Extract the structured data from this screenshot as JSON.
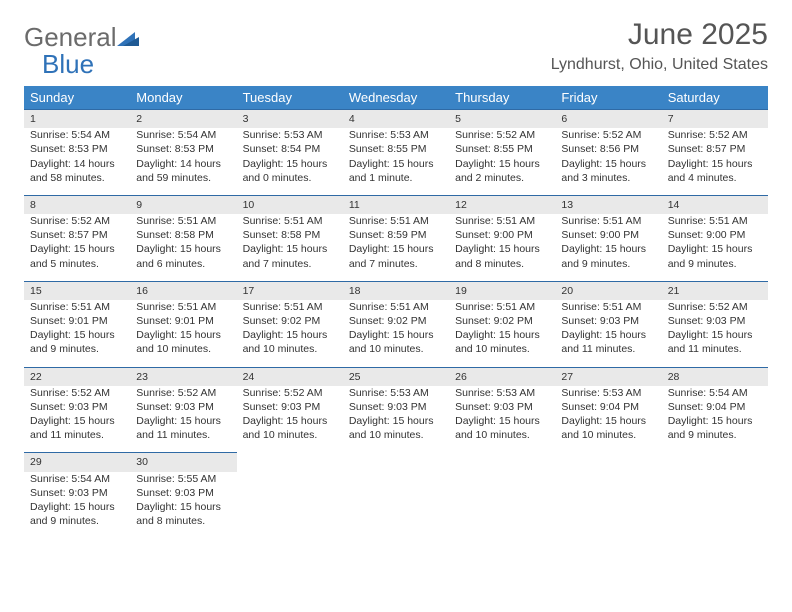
{
  "logo": {
    "text_gray": "General",
    "text_blue": "Blue",
    "gray_color": "#6b6b6b",
    "blue_color": "#2f72b8"
  },
  "title": "June 2025",
  "location": "Lyndhurst, Ohio, United States",
  "header_bg": "#3a84c6",
  "header_fg": "#ffffff",
  "daynum_bg": "#e9e9e9",
  "rule_color": "#2f6aa5",
  "weekdays": [
    "Sunday",
    "Monday",
    "Tuesday",
    "Wednesday",
    "Thursday",
    "Friday",
    "Saturday"
  ],
  "weeks": [
    [
      {
        "n": "1",
        "sr": "Sunrise: 5:54 AM",
        "ss": "Sunset: 8:53 PM",
        "dl": "Daylight: 14 hours and 58 minutes."
      },
      {
        "n": "2",
        "sr": "Sunrise: 5:54 AM",
        "ss": "Sunset: 8:53 PM",
        "dl": "Daylight: 14 hours and 59 minutes."
      },
      {
        "n": "3",
        "sr": "Sunrise: 5:53 AM",
        "ss": "Sunset: 8:54 PM",
        "dl": "Daylight: 15 hours and 0 minutes."
      },
      {
        "n": "4",
        "sr": "Sunrise: 5:53 AM",
        "ss": "Sunset: 8:55 PM",
        "dl": "Daylight: 15 hours and 1 minute."
      },
      {
        "n": "5",
        "sr": "Sunrise: 5:52 AM",
        "ss": "Sunset: 8:55 PM",
        "dl": "Daylight: 15 hours and 2 minutes."
      },
      {
        "n": "6",
        "sr": "Sunrise: 5:52 AM",
        "ss": "Sunset: 8:56 PM",
        "dl": "Daylight: 15 hours and 3 minutes."
      },
      {
        "n": "7",
        "sr": "Sunrise: 5:52 AM",
        "ss": "Sunset: 8:57 PM",
        "dl": "Daylight: 15 hours and 4 minutes."
      }
    ],
    [
      {
        "n": "8",
        "sr": "Sunrise: 5:52 AM",
        "ss": "Sunset: 8:57 PM",
        "dl": "Daylight: 15 hours and 5 minutes."
      },
      {
        "n": "9",
        "sr": "Sunrise: 5:51 AM",
        "ss": "Sunset: 8:58 PM",
        "dl": "Daylight: 15 hours and 6 minutes."
      },
      {
        "n": "10",
        "sr": "Sunrise: 5:51 AM",
        "ss": "Sunset: 8:58 PM",
        "dl": "Daylight: 15 hours and 7 minutes."
      },
      {
        "n": "11",
        "sr": "Sunrise: 5:51 AM",
        "ss": "Sunset: 8:59 PM",
        "dl": "Daylight: 15 hours and 7 minutes."
      },
      {
        "n": "12",
        "sr": "Sunrise: 5:51 AM",
        "ss": "Sunset: 9:00 PM",
        "dl": "Daylight: 15 hours and 8 minutes."
      },
      {
        "n": "13",
        "sr": "Sunrise: 5:51 AM",
        "ss": "Sunset: 9:00 PM",
        "dl": "Daylight: 15 hours and 9 minutes."
      },
      {
        "n": "14",
        "sr": "Sunrise: 5:51 AM",
        "ss": "Sunset: 9:00 PM",
        "dl": "Daylight: 15 hours and 9 minutes."
      }
    ],
    [
      {
        "n": "15",
        "sr": "Sunrise: 5:51 AM",
        "ss": "Sunset: 9:01 PM",
        "dl": "Daylight: 15 hours and 9 minutes."
      },
      {
        "n": "16",
        "sr": "Sunrise: 5:51 AM",
        "ss": "Sunset: 9:01 PM",
        "dl": "Daylight: 15 hours and 10 minutes."
      },
      {
        "n": "17",
        "sr": "Sunrise: 5:51 AM",
        "ss": "Sunset: 9:02 PM",
        "dl": "Daylight: 15 hours and 10 minutes."
      },
      {
        "n": "18",
        "sr": "Sunrise: 5:51 AM",
        "ss": "Sunset: 9:02 PM",
        "dl": "Daylight: 15 hours and 10 minutes."
      },
      {
        "n": "19",
        "sr": "Sunrise: 5:51 AM",
        "ss": "Sunset: 9:02 PM",
        "dl": "Daylight: 15 hours and 10 minutes."
      },
      {
        "n": "20",
        "sr": "Sunrise: 5:51 AM",
        "ss": "Sunset: 9:03 PM",
        "dl": "Daylight: 15 hours and 11 minutes."
      },
      {
        "n": "21",
        "sr": "Sunrise: 5:52 AM",
        "ss": "Sunset: 9:03 PM",
        "dl": "Daylight: 15 hours and 11 minutes."
      }
    ],
    [
      {
        "n": "22",
        "sr": "Sunrise: 5:52 AM",
        "ss": "Sunset: 9:03 PM",
        "dl": "Daylight: 15 hours and 11 minutes."
      },
      {
        "n": "23",
        "sr": "Sunrise: 5:52 AM",
        "ss": "Sunset: 9:03 PM",
        "dl": "Daylight: 15 hours and 11 minutes."
      },
      {
        "n": "24",
        "sr": "Sunrise: 5:52 AM",
        "ss": "Sunset: 9:03 PM",
        "dl": "Daylight: 15 hours and 10 minutes."
      },
      {
        "n": "25",
        "sr": "Sunrise: 5:53 AM",
        "ss": "Sunset: 9:03 PM",
        "dl": "Daylight: 15 hours and 10 minutes."
      },
      {
        "n": "26",
        "sr": "Sunrise: 5:53 AM",
        "ss": "Sunset: 9:03 PM",
        "dl": "Daylight: 15 hours and 10 minutes."
      },
      {
        "n": "27",
        "sr": "Sunrise: 5:53 AM",
        "ss": "Sunset: 9:04 PM",
        "dl": "Daylight: 15 hours and 10 minutes."
      },
      {
        "n": "28",
        "sr": "Sunrise: 5:54 AM",
        "ss": "Sunset: 9:04 PM",
        "dl": "Daylight: 15 hours and 9 minutes."
      }
    ],
    [
      {
        "n": "29",
        "sr": "Sunrise: 5:54 AM",
        "ss": "Sunset: 9:03 PM",
        "dl": "Daylight: 15 hours and 9 minutes."
      },
      {
        "n": "30",
        "sr": "Sunrise: 5:55 AM",
        "ss": "Sunset: 9:03 PM",
        "dl": "Daylight: 15 hours and 8 minutes."
      },
      null,
      null,
      null,
      null,
      null
    ]
  ]
}
